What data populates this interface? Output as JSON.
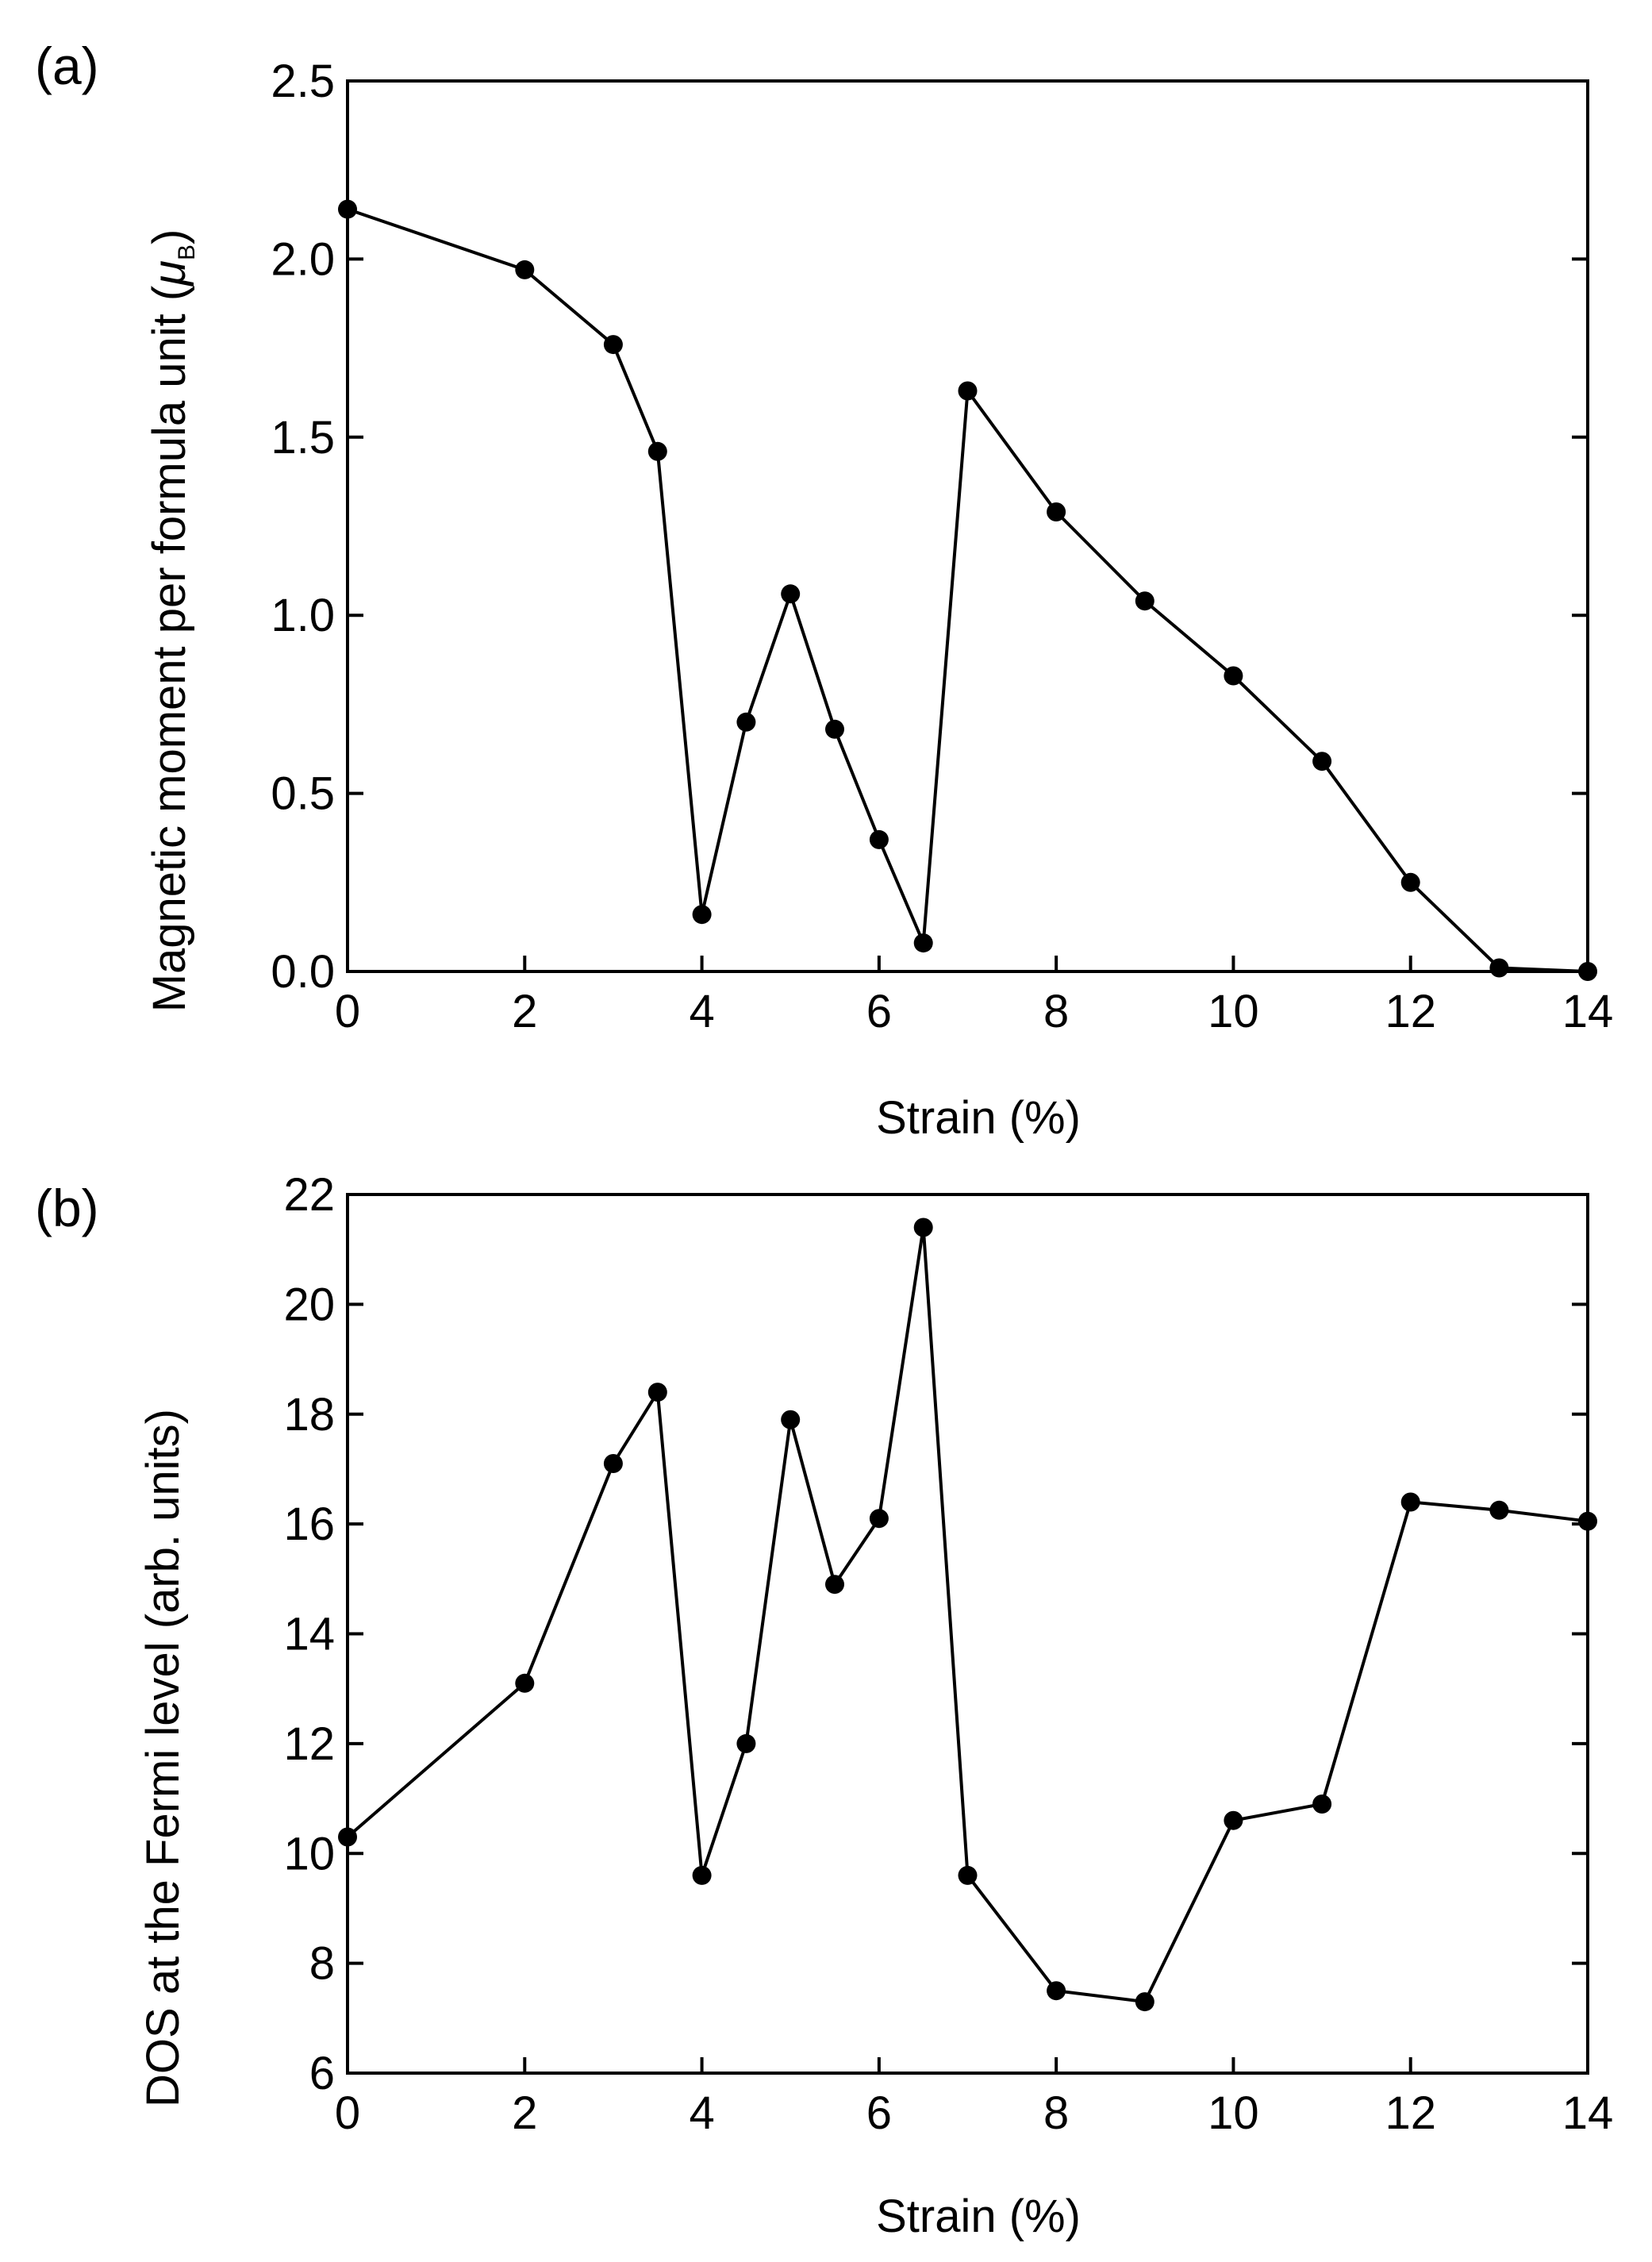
{
  "figure": {
    "colors": {
      "axis": "#000000",
      "line": "#000000",
      "marker": "#000000",
      "background": "#ffffff"
    }
  },
  "chart_data": [
    {
      "id": "a",
      "type": "line",
      "panel_label": "(a)",
      "title": "",
      "xlabel": "Strain (%)",
      "ylabel": "Magnetic moment per formula unit (",
      "ylabel_symbol": "μ",
      "ylabel_subscript": "B",
      "ylabel_end": ")",
      "xlim": [
        0,
        14
      ],
      "ylim": [
        0,
        2.5
      ],
      "xticks": [
        0,
        2,
        4,
        6,
        8,
        10,
        12,
        14
      ],
      "yticks": [
        0.0,
        0.5,
        1.0,
        1.5,
        2.0,
        2.5
      ],
      "xtick_labels": [
        "0",
        "2",
        "4",
        "6",
        "8",
        "10",
        "12",
        "14"
      ],
      "ytick_labels": [
        "0.0",
        "0.5",
        "1.0",
        "1.5",
        "2.0",
        "2.5"
      ],
      "grid": false,
      "series": [
        {
          "name": "Magnetic moment",
          "x": [
            0,
            2,
            3,
            3.5,
            4,
            4.5,
            5,
            5.5,
            6,
            6.5,
            7,
            8,
            9,
            10,
            11,
            12,
            13,
            14
          ],
          "y": [
            2.14,
            1.97,
            1.76,
            1.46,
            0.16,
            0.7,
            1.06,
            0.68,
            0.37,
            0.08,
            1.63,
            1.29,
            1.04,
            0.83,
            0.59,
            0.25,
            0.01,
            0.0
          ]
        }
      ]
    },
    {
      "id": "b",
      "type": "line",
      "panel_label": "(b)",
      "title": "",
      "xlabel": "Strain (%)",
      "ylabel": "DOS at the Fermi level (arb. units)",
      "xlim": [
        0,
        14
      ],
      "ylim": [
        6,
        22
      ],
      "xticks": [
        0,
        2,
        4,
        6,
        8,
        10,
        12,
        14
      ],
      "yticks": [
        6,
        8,
        10,
        12,
        14,
        16,
        18,
        20,
        22
      ],
      "xtick_labels": [
        "0",
        "2",
        "4",
        "6",
        "8",
        "10",
        "12",
        "14"
      ],
      "ytick_labels": [
        "6",
        "8",
        "10",
        "12",
        "14",
        "16",
        "18",
        "20",
        "22"
      ],
      "grid": false,
      "series": [
        {
          "name": "DOS at the Fermi level",
          "x": [
            0,
            2,
            3,
            3.5,
            4,
            4.5,
            5,
            5.5,
            6,
            6.5,
            7,
            8,
            9,
            10,
            11,
            12,
            13,
            14
          ],
          "y": [
            10.3,
            13.1,
            17.1,
            18.4,
            9.6,
            12.0,
            17.9,
            14.9,
            16.1,
            21.4,
            9.6,
            7.5,
            7.3,
            10.6,
            10.9,
            16.4,
            16.25,
            16.05
          ]
        }
      ]
    }
  ]
}
